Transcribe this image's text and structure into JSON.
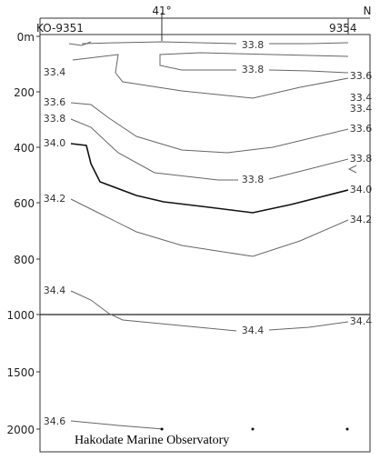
{
  "header": {
    "latitude": "41°",
    "direction": "N",
    "station_left": "KO-9351",
    "station_right": "9354"
  },
  "y_axis": {
    "upper_ticks": [
      "0m",
      "200",
      "400",
      "600",
      "800",
      "1000"
    ],
    "lower_ticks": [
      "1500",
      "2000"
    ]
  },
  "contour_labels": [
    "33.8",
    "33.4",
    "33.8",
    "33.6",
    "33.6",
    "33.4",
    "33.4",
    "33.8",
    "33.6",
    "34.0",
    "33.8",
    "33.8",
    "34.0",
    "34.2",
    "34.2",
    "34.4",
    "34.4",
    "34.4",
    "34.6"
  ],
  "credit": "Hakodate Marine Observatory"
}
